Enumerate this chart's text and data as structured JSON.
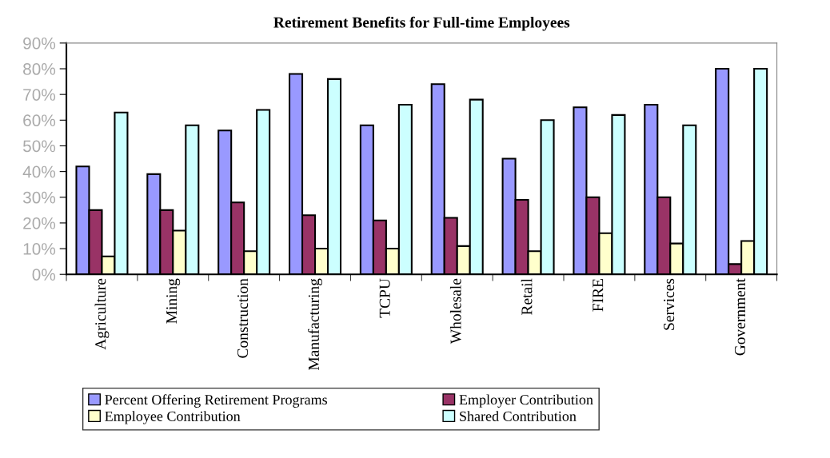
{
  "chart_data": {
    "type": "bar",
    "title": "Retirement Benefits for Full-time Employees",
    "categories": [
      "Agriculture",
      "Mining",
      "Construction",
      "Manufacturing",
      "TCPU",
      "Wholesale",
      "Retail",
      "FIRE",
      "Services",
      "Government"
    ],
    "series": [
      {
        "name": "Percent Offering Retirement Programs",
        "color": "#9999ff",
        "values": [
          42,
          39,
          56,
          78,
          58,
          74,
          45,
          65,
          66,
          80
        ]
      },
      {
        "name": "Employer Contribution",
        "color": "#993366",
        "values": [
          25,
          25,
          28,
          23,
          21,
          22,
          29,
          30,
          30,
          4
        ]
      },
      {
        "name": "Employee Contribution",
        "color": "#ffffcc",
        "values": [
          7,
          17,
          9,
          10,
          10,
          11,
          9,
          16,
          12,
          13
        ]
      },
      {
        "name": "Shared Contribution",
        "color": "#ccffff",
        "values": [
          63,
          58,
          64,
          76,
          66,
          68,
          60,
          62,
          58,
          80
        ]
      }
    ],
    "ylim": [
      0,
      90
    ],
    "yticks": [
      {
        "value": 0,
        "label": "0%"
      },
      {
        "value": 10,
        "label": "10%"
      },
      {
        "value": 20,
        "label": "20%"
      },
      {
        "value": 30,
        "label": "30%"
      },
      {
        "value": 40,
        "label": "40%"
      },
      {
        "value": 50,
        "label": "50%"
      },
      {
        "value": 60,
        "label": "60%"
      },
      {
        "value": 70,
        "label": "70%"
      },
      {
        "value": 80,
        "label": "80%"
      },
      {
        "value": 90,
        "label": "90%"
      }
    ],
    "legend": "bottom",
    "grid": false
  }
}
